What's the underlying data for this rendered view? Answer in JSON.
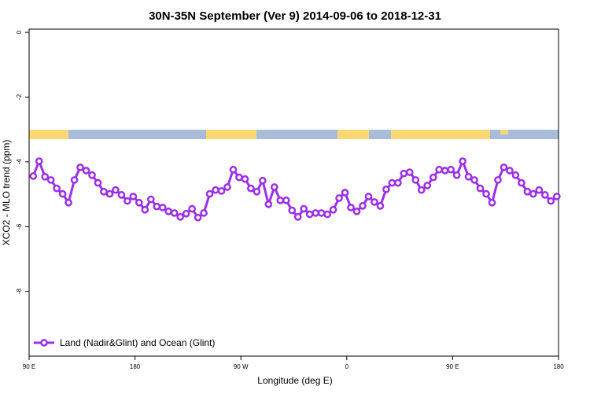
{
  "chart_data": {
    "type": "line",
    "title": "30N-35N September (Ver 9)   2014-09-06 to 2018-12-31",
    "xlabel": "Longitude (deg E)",
    "ylabel": "XCO2 - MLO trend (ppm)",
    "xlim": [
      90,
      540
    ],
    "ylim": [
      -10,
      0.1
    ],
    "xticks": [
      {
        "value": 90,
        "label": "90 E"
      },
      180,
      {
        "value": 270,
        "label": "90 W"
      },
      {
        "value": 360,
        "label": "0"
      },
      {
        "value": 450,
        "label": "90 E"
      },
      {
        "value": 540,
        "label": "180"
      }
    ],
    "yticks": [
      0,
      -2,
      -4,
      -6,
      -8
    ],
    "legend": "bottom-left",
    "x": [
      93.5,
      98.5,
      103.5,
      108.5,
      113.5,
      118.5,
      123.5,
      128.5,
      133.5,
      138.5,
      143.5,
      148.5,
      153.5,
      158.5,
      163.5,
      168.5,
      173.5,
      178.5,
      183.5,
      188.5,
      193.5,
      198.5,
      203.5,
      208.5,
      213.5,
      218.5,
      223.5,
      228.5,
      233.5,
      238.5,
      243.5,
      248.5,
      253.5,
      258.5,
      263.5,
      268.5,
      273.5,
      278.5,
      283.5,
      288.5,
      293.5,
      298.5,
      303.5,
      308.5,
      313.5,
      318.5,
      323.5,
      328.5,
      333.5,
      338.5,
      343.5,
      348.5,
      353.5,
      358.5,
      363.5,
      368.5,
      373.5,
      378.5,
      383.5,
      388.5,
      393.5,
      398.5,
      403.5,
      408.5,
      413.5,
      418.5,
      423.5,
      428.5,
      433.5,
      438.5,
      443.5,
      448.5,
      453.5,
      458.5,
      463.5,
      468.5,
      473.5,
      478.5,
      483.5,
      488.5,
      493.5,
      498.5,
      503.5,
      508.5,
      513.5,
      518.5,
      523.5,
      528.5,
      533.5,
      538.5
    ],
    "series": [
      {
        "name": "Land (Nadir&Glint) and Ocean (Glint)",
        "color": "#9b30e8",
        "values": [
          -4.44,
          -3.98,
          -4.46,
          -4.56,
          -4.82,
          -4.99,
          -5.26,
          -4.56,
          -4.17,
          -4.27,
          -4.41,
          -4.65,
          -4.92,
          -4.99,
          -4.87,
          -5.02,
          -5.21,
          -5.07,
          -5.26,
          -5.48,
          -5.16,
          -5.38,
          -5.41,
          -5.53,
          -5.58,
          -5.7,
          -5.6,
          -5.45,
          -5.72,
          -5.58,
          -4.99,
          -4.87,
          -4.9,
          -4.78,
          -4.24,
          -4.48,
          -4.53,
          -4.82,
          -4.92,
          -4.58,
          -5.31,
          -4.78,
          -5.19,
          -5.19,
          -5.5,
          -5.7,
          -5.45,
          -5.62,
          -5.58,
          -5.58,
          -5.62,
          -5.48,
          -5.12,
          -4.95,
          -5.41,
          -5.53,
          -5.36,
          -5.07,
          -5.24,
          -5.36,
          -4.85,
          -4.65,
          -4.65,
          -4.36,
          -4.32,
          -4.56,
          -4.87,
          -4.73,
          -4.48,
          -4.24,
          -4.27,
          -4.24,
          -4.41,
          -3.98,
          -4.46,
          -4.56,
          -4.82,
          -4.99,
          -5.26,
          -4.56,
          -4.17,
          -4.27,
          -4.41,
          -4.65,
          -4.92,
          -4.99,
          -4.87,
          -5.02,
          -5.21,
          -5.07
        ]
      }
    ]
  }
}
